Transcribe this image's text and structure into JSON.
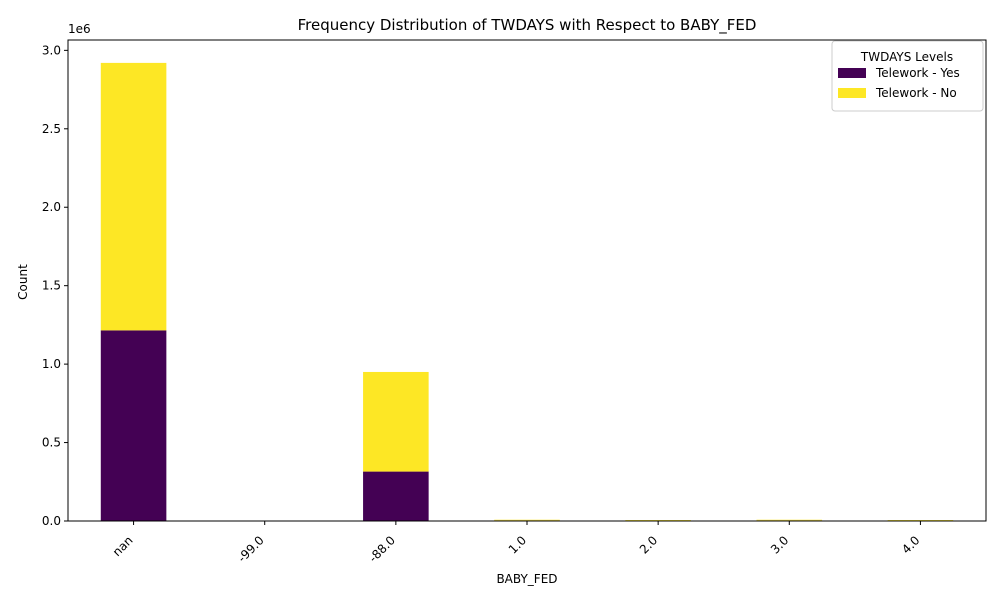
{
  "chart_data": {
    "type": "bar",
    "stacked": true,
    "title": "Frequency Distribution of TWDAYS with Respect to BABY_FED",
    "xlabel": "BABY_FED",
    "ylabel": "Count",
    "y_scale_note": "1e6",
    "categories": [
      "nan",
      "-99.0",
      "-88.0",
      "1.0",
      "2.0",
      "3.0",
      "4.0"
    ],
    "series": [
      {
        "name": "Telework - Yes",
        "color": "#440154",
        "values": [
          1215000,
          0,
          315000,
          4000,
          3000,
          4000,
          3000
        ]
      },
      {
        "name": "Telework - No",
        "color": "#fde725",
        "values": [
          1705000,
          0,
          635000,
          4000,
          3000,
          4000,
          3000
        ]
      }
    ],
    "ylim": [
      0,
      3066000
    ],
    "yticks": [
      0,
      500000,
      1000000,
      1500000,
      2000000,
      2500000,
      3000000
    ],
    "ytick_labels": [
      "0.0",
      "0.5",
      "1.0",
      "1.5",
      "2.0",
      "2.5",
      "3.0"
    ],
    "legend": {
      "title": "TWDAYS Levels",
      "placement": "top-right"
    },
    "grid": false
  }
}
